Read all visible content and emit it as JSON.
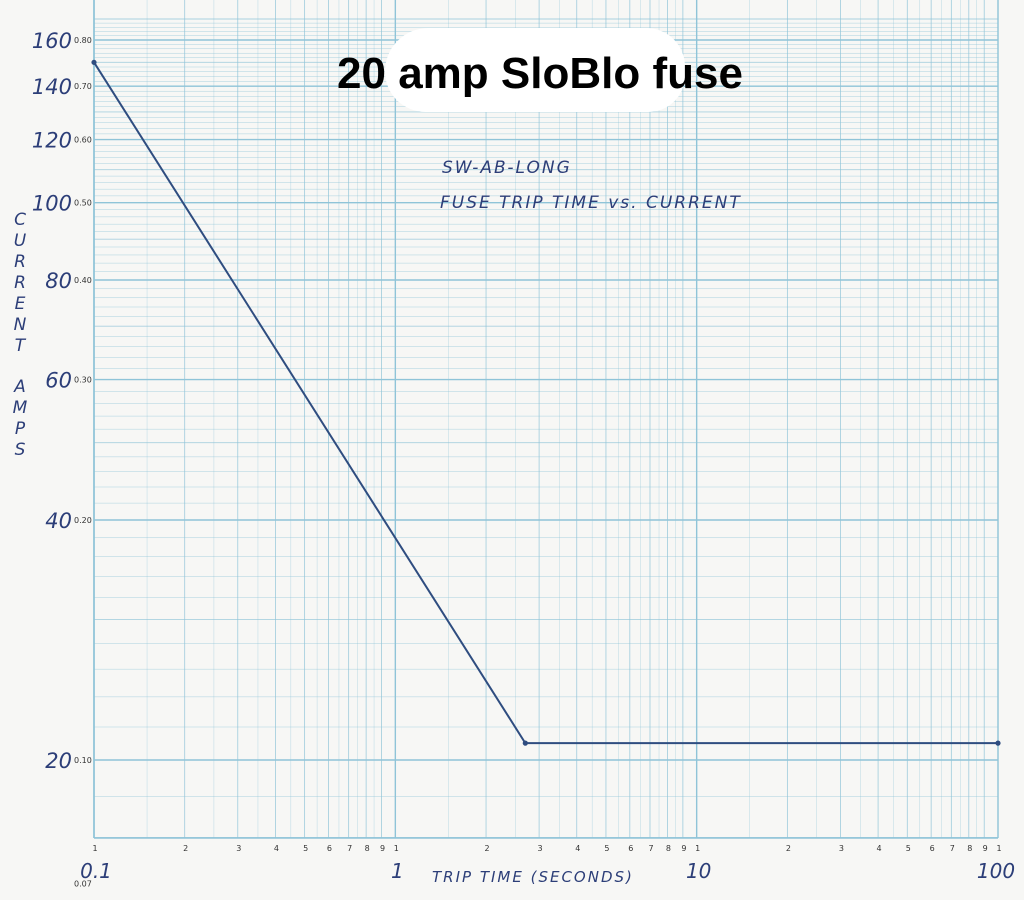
{
  "title": "20 amp SloBlo fuse",
  "annotation": {
    "line1": "SW-AB-LONG",
    "line2": "FUSE TRIP TIME vs. CURRENT"
  },
  "colors": {
    "grid": "#8fc4d8",
    "curve": "#2f4d80",
    "ink": "#2c3e78",
    "paper": "#f7f7f5"
  },
  "chart_data": {
    "type": "line",
    "title": "20 amp SloBlo fuse",
    "xlabel": "TRIP TIME (SECONDS)",
    "ylabel": "CURRENT AMPS",
    "x_scale": "log",
    "y_scale": "log",
    "xlim": [
      0.1,
      100
    ],
    "ylim": [
      14,
      160
    ],
    "grid": true,
    "x_major_ticks": [
      "0.1",
      "1",
      "10",
      "100"
    ],
    "x_minor_ticks": [
      "1",
      "2",
      "3",
      "4",
      "5",
      "6",
      "7",
      "8",
      "9"
    ],
    "y_major_ticks": [
      {
        "value": 160,
        "label": "160",
        "scale_label": "0.80"
      },
      {
        "value": 140,
        "label": "140",
        "scale_label": "0.70"
      },
      {
        "value": 120,
        "label": "120",
        "scale_label": "0.60"
      },
      {
        "value": 100,
        "label": "100",
        "scale_label": "0.50"
      },
      {
        "value": 80,
        "label": "80",
        "scale_label": "0.40"
      },
      {
        "value": 60,
        "label": "60",
        "scale_label": "0.30"
      },
      {
        "value": 40,
        "label": "40",
        "scale_label": "0.20"
      },
      {
        "value": 20,
        "label": "20",
        "scale_label": "0.10"
      },
      {
        "value": 14,
        "label": "",
        "scale_label": "0.07"
      }
    ],
    "series": [
      {
        "x": [
          0.1,
          2.7,
          100
        ],
        "y": [
          150,
          21,
          21
        ]
      }
    ]
  }
}
